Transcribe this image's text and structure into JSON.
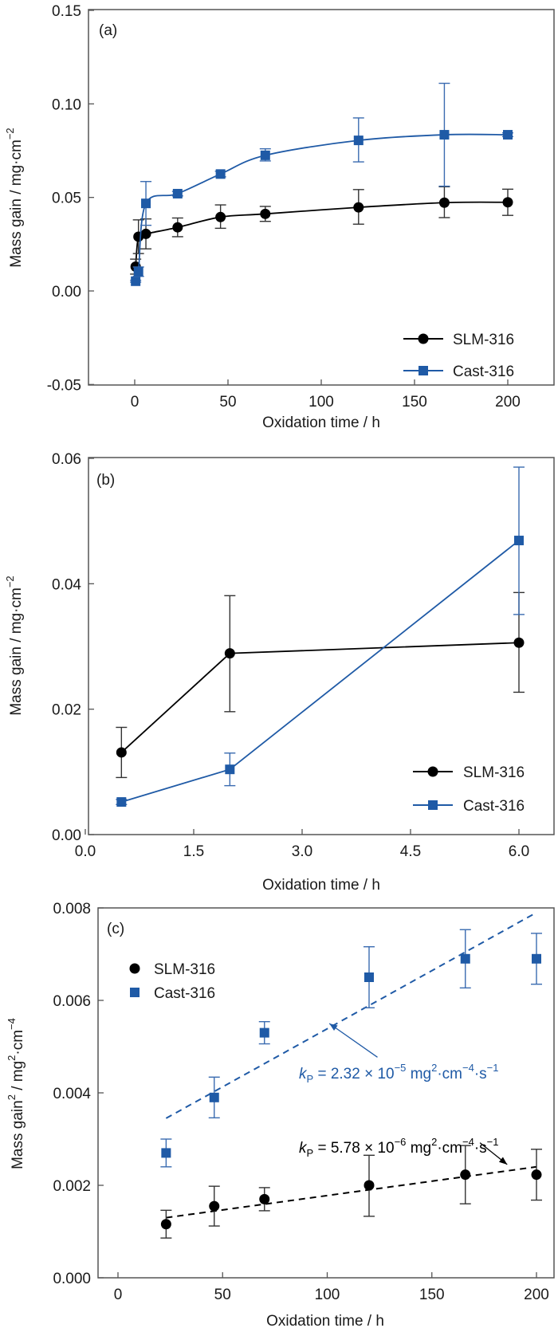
{
  "colors": {
    "slm": "#000000",
    "cast": "#1f5aa6",
    "axis": "#555555"
  },
  "chart_data": [
    {
      "id": "a",
      "type": "line",
      "panel_label": "(a)",
      "xlabel": "Oxidation time / h",
      "ylabel": "Mass gain / mg·cm",
      "ylabel_sup": "−2",
      "xlim": [
        -12,
        220
      ],
      "ylim": [
        -0.05,
        0.15
      ],
      "xticks": [
        0,
        50,
        100,
        150,
        200
      ],
      "xtick_labels": [
        "0",
        "50",
        "100",
        "150",
        "200"
      ],
      "yticks": [
        -0.05,
        0.0,
        0.05,
        0.1,
        0.15
      ],
      "ytick_labels": [
        "-0.05",
        "0.00",
        "0.05",
        "0.10",
        "0.15"
      ],
      "legend": {
        "position": "bottom-right",
        "entries": [
          "SLM-316",
          "Cast-316"
        ]
      },
      "series": [
        {
          "name": "SLM-316",
          "marker": "circle",
          "line": "smooth-fit",
          "x": [
            0.5,
            2,
            6,
            23,
            46,
            70,
            120,
            166,
            200
          ],
          "y": [
            0.013,
            0.029,
            0.0305,
            0.034,
            0.0395,
            0.0412,
            0.0447,
            0.0472,
            0.0474
          ],
          "err_low": [
            0.004,
            0.009,
            0.008,
            0.005,
            0.006,
            0.004,
            0.009,
            0.008,
            0.007
          ],
          "err_high": [
            0.004,
            0.009,
            0.008,
            0.005,
            0.0065,
            0.004,
            0.0095,
            0.0085,
            0.007
          ]
        },
        {
          "name": "Cast-316",
          "marker": "square",
          "line": "smooth-fit",
          "x": [
            0.5,
            2,
            6,
            23,
            46,
            70,
            120,
            166,
            200
          ],
          "y": [
            0.0052,
            0.0103,
            0.0468,
            0.052,
            0.0625,
            0.0725,
            0.0805,
            0.0835,
            0.0835
          ],
          "err_low": [
            0.0005,
            0.0025,
            0.0117,
            0.0012,
            0.0015,
            0.003,
            0.0115,
            0.0275,
            0.001
          ],
          "err_high": [
            0.0005,
            0.0025,
            0.0117,
            0.0012,
            0.0015,
            0.0035,
            0.012,
            0.0275,
            0.001
          ]
        }
      ]
    },
    {
      "id": "b",
      "type": "line",
      "panel_label": "(b)",
      "xlabel": "Oxidation time / h",
      "ylabel": "Mass gain / mg·cm",
      "ylabel_sup": "−2",
      "xlim": [
        0.0,
        6.5
      ],
      "ylim": [
        0.0,
        0.06
      ],
      "xticks": [
        0.0,
        1.5,
        3.0,
        4.5,
        6.0
      ],
      "xtick_labels": [
        "0.0",
        "1.5",
        "3.0",
        "4.5",
        "6.0"
      ],
      "yticks": [
        0.0,
        0.02,
        0.04,
        0.06
      ],
      "ytick_labels": [
        "0.00",
        "0.02",
        "0.04",
        "0.06"
      ],
      "legend": {
        "position": "right",
        "entries": [
          "SLM-316",
          "Cast-316"
        ]
      },
      "series": [
        {
          "name": "SLM-316",
          "marker": "circle",
          "line": "straight",
          "x": [
            0.5,
            2,
            6
          ],
          "y": [
            0.0131,
            0.0289,
            0.0306
          ],
          "err_low": [
            0.004,
            0.0093,
            0.0079
          ],
          "err_high": [
            0.004,
            0.0092,
            0.008
          ]
        },
        {
          "name": "Cast-316",
          "marker": "square",
          "line": "straight",
          "x": [
            0.5,
            2,
            6
          ],
          "y": [
            0.0052,
            0.0104,
            0.0469
          ],
          "err_low": [
            0.0004,
            0.0026,
            0.0118
          ],
          "err_high": [
            0.0004,
            0.0026,
            0.0117
          ]
        }
      ]
    },
    {
      "id": "c",
      "type": "scatter",
      "panel_label": "(c)",
      "xlabel": "Oxidation time / h",
      "ylabel": "Mass gain",
      "ylabel_mid": " / mg",
      "ylabel_tail": "·cm",
      "ylabel_sup1": "2",
      "ylabel_sup2": "2",
      "ylabel_sup3": "−4",
      "xlim": [
        -12,
        220
      ],
      "ylim": [
        0.0,
        0.008
      ],
      "xticks": [
        0,
        50,
        100,
        150,
        200
      ],
      "xtick_labels": [
        "0",
        "50",
        "100",
        "150",
        "200"
      ],
      "yticks": [
        0.0,
        0.002,
        0.004,
        0.006,
        0.008
      ],
      "ytick_labels": [
        "0.000",
        "0.002",
        "0.004",
        "0.006",
        "0.008"
      ],
      "legend": {
        "position": "top-left",
        "entries": [
          "SLM-316",
          "Cast-316"
        ]
      },
      "series": [
        {
          "name": "SLM-316",
          "marker": "circle",
          "x": [
            23,
            46,
            70,
            120,
            166,
            200
          ],
          "y": [
            0.00116,
            0.00155,
            0.0017,
            0.002,
            0.00223,
            0.00223
          ],
          "err_low": [
            0.0003,
            0.00043,
            0.00025,
            0.00067,
            0.00063,
            0.00055
          ],
          "err_high": [
            0.0003,
            0.00043,
            0.00025,
            0.00065,
            0.00063,
            0.00055
          ],
          "fit": {
            "x": [
              23,
              200
            ],
            "y": [
              0.0013,
              0.0024
            ],
            "style": "dashed"
          }
        },
        {
          "name": "Cast-316",
          "marker": "square",
          "x": [
            23,
            46,
            70,
            120,
            166,
            200
          ],
          "y": [
            0.0027,
            0.0039,
            0.0053,
            0.0065,
            0.0069,
            0.0069
          ],
          "err_low": [
            0.0003,
            0.00044,
            0.00024,
            0.00066,
            0.00063,
            0.00055
          ],
          "err_high": [
            0.0003,
            0.00044,
            0.00024,
            0.00066,
            0.00063,
            0.00055
          ],
          "fit": {
            "x": [
              23,
              200
            ],
            "y": [
              0.00345,
              0.0079
            ],
            "style": "dashed"
          }
        }
      ],
      "annotations": [
        {
          "series": "Cast-316",
          "k": "k",
          "sub": "P",
          "eq": " = 2.32 × 10",
          "exp": "−5",
          "unit": " mg",
          "u_sup1": "2",
          "unit2": "·cm",
          "u_sup2": "−4",
          "unit3": "·s",
          "u_sup3": "−1",
          "arrow_to": [
            101,
            0.0055
          ],
          "arrow_from": [
            124,
            0.00477
          ]
        },
        {
          "series": "SLM-316",
          "k": "k",
          "sub": "P",
          "eq": " = 5.78 × 10",
          "exp": "−6",
          "unit": " mg",
          "u_sup1": "2",
          "unit2": "·cm",
          "u_sup2": "−4",
          "unit3": "·s",
          "u_sup3": "−1",
          "arrow_to": [
            186,
            0.00245
          ],
          "arrow_from": [
            173,
            0.00292
          ]
        }
      ]
    }
  ]
}
